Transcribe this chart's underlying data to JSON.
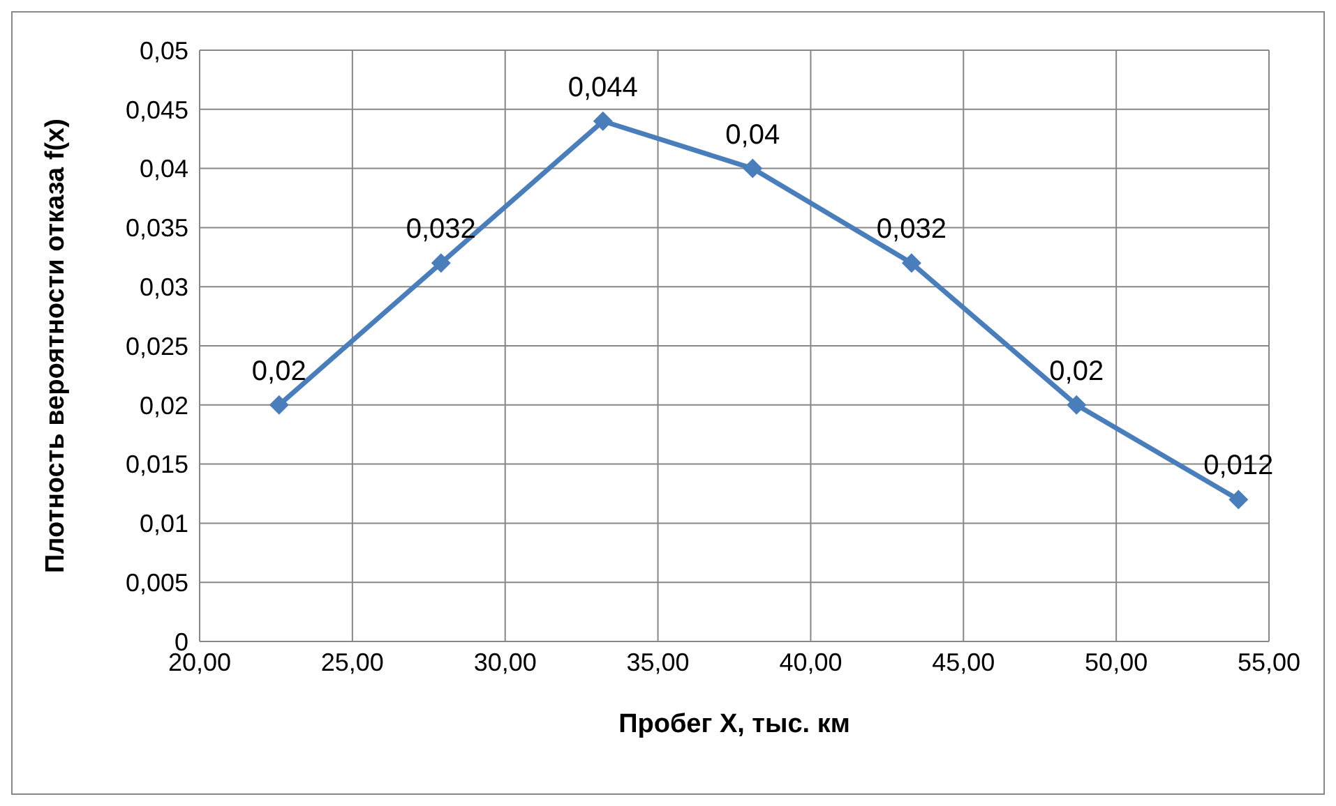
{
  "chart_data": {
    "type": "line",
    "xlabel": "Пробег X, тыс. км",
    "ylabel": "Плотность вероятности отказа f(x)",
    "x": [
      22.6,
      27.9,
      33.2,
      38.1,
      43.3,
      48.7,
      54.0
    ],
    "series": [
      {
        "color": "#4a7ebb",
        "values": [
          0.02,
          0.032,
          0.044,
          0.04,
          0.032,
          0.02,
          0.012
        ],
        "value_labels": [
          "0,02",
          "0,032",
          "0,044",
          "0,04",
          "0,032",
          "0,02",
          "0,012"
        ]
      }
    ],
    "xlim": [
      20,
      55
    ],
    "xticks": [
      {
        "value": 20,
        "label": "20,00"
      },
      {
        "value": 25,
        "label": "25,00"
      },
      {
        "value": 30,
        "label": "30,00"
      },
      {
        "value": 35,
        "label": "35,00"
      },
      {
        "value": 40,
        "label": "40,00"
      },
      {
        "value": 45,
        "label": "45,00"
      },
      {
        "value": 50,
        "label": "50,00"
      },
      {
        "value": 55,
        "label": "55,00"
      }
    ],
    "ylim": [
      0,
      0.05
    ],
    "yticks": [
      0,
      {
        "value": 0.005,
        "label": "0,005"
      },
      {
        "value": 0.01,
        "label": "0,01"
      },
      {
        "value": 0.015,
        "label": "0,015"
      },
      {
        "value": 0.02,
        "label": "0,02"
      },
      {
        "value": 0.025,
        "label": "0,025"
      },
      {
        "value": 0.03,
        "label": "0,03"
      },
      {
        "value": 0.035,
        "label": "0,035"
      },
      {
        "value": 0.04,
        "label": "0,04"
      },
      {
        "value": 0.045,
        "label": "0,045"
      },
      {
        "value": 0.05,
        "label": "0,05"
      }
    ],
    "grid": true,
    "marker": "diamond",
    "line_style": "solid"
  }
}
